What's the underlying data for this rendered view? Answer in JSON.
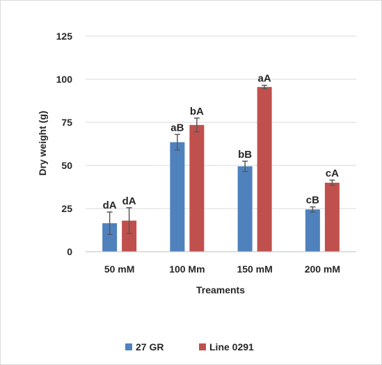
{
  "chart_data": {
    "type": "bar",
    "title": "",
    "xlabel": "Treaments",
    "ylabel": "Dry weight  (g)",
    "ylim": [
      0,
      125
    ],
    "yticks": [
      0,
      25,
      50,
      75,
      100,
      125
    ],
    "grid": true,
    "legend_position": "bottom",
    "categories": [
      "50 mM",
      "100 Mm",
      "150 mM",
      "200 mM"
    ],
    "series": [
      {
        "name": "27 GR",
        "color": "#4f81bd",
        "values": [
          16.5,
          63.5,
          49.5,
          24.5
        ],
        "errors": [
          6.5,
          4.5,
          3.0,
          1.5
        ],
        "labels": [
          "dA",
          "aB",
          "bB",
          "cB"
        ]
      },
      {
        "name": "Line 0291",
        "color": "#c0504d",
        "values": [
          18,
          73.5,
          95.5,
          40
        ],
        "errors": [
          7.5,
          4.0,
          1.0,
          1.5
        ],
        "labels": [
          "dA",
          "bA",
          "aA",
          "cA"
        ]
      }
    ]
  }
}
